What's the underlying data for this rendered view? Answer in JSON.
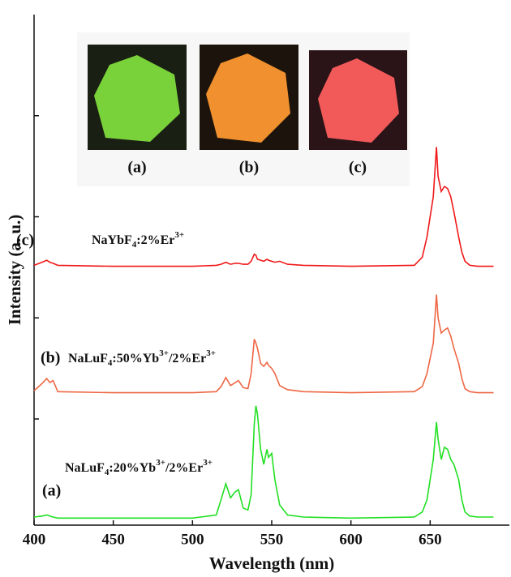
{
  "chart_data": {
    "type": "line",
    "xlabel": "Wavelength (nm)",
    "ylabel": "Intensity (a. u.)",
    "xlim": [
      400,
      700
    ],
    "xticks": [
      400,
      450,
      500,
      550,
      600,
      650
    ],
    "ylim": [
      -0.05,
      5
    ],
    "yticks": [
      1,
      2,
      3,
      4
    ],
    "x": [
      400,
      405,
      408,
      410,
      412,
      415,
      450,
      500,
      515,
      518,
      521,
      524,
      527,
      529,
      532,
      535,
      537,
      539,
      540,
      541,
      543,
      545,
      547,
      548,
      550,
      552,
      555,
      560,
      570,
      600,
      640,
      645,
      648,
      650,
      652,
      654,
      655,
      657,
      659,
      661,
      663,
      665,
      668,
      670,
      672,
      675,
      680,
      690
    ],
    "series": [
      {
        "name": "NaLuF4:20%Yb3+/2%Er3+",
        "color": "#22e022",
        "values": [
          0.03,
          0.04,
          0.05,
          0.04,
          0.03,
          0.02,
          0.02,
          0.02,
          0.05,
          0.2,
          0.36,
          0.22,
          0.28,
          0.3,
          0.12,
          0.1,
          0.25,
          0.95,
          1.13,
          1.05,
          0.7,
          0.55,
          0.7,
          0.62,
          0.66,
          0.4,
          0.15,
          0.05,
          0.03,
          0.02,
          0.03,
          0.08,
          0.2,
          0.4,
          0.6,
          0.97,
          0.8,
          0.6,
          0.72,
          0.7,
          0.6,
          0.55,
          0.4,
          0.2,
          0.08,
          0.04,
          0.03,
          0.03
        ]
      },
      {
        "name": "NaLuF4:50%Yb3+/2%Er3+",
        "color": "#ee6644",
        "values": [
          1.28,
          1.35,
          1.4,
          1.36,
          1.38,
          1.27,
          1.26,
          1.26,
          1.27,
          1.32,
          1.41,
          1.33,
          1.36,
          1.38,
          1.31,
          1.3,
          1.45,
          1.79,
          1.75,
          1.7,
          1.55,
          1.52,
          1.56,
          1.53,
          1.5,
          1.45,
          1.33,
          1.29,
          1.27,
          1.26,
          1.27,
          1.32,
          1.45,
          1.6,
          1.75,
          2.23,
          2.0,
          1.85,
          1.88,
          1.9,
          1.82,
          1.7,
          1.55,
          1.4,
          1.3,
          1.27,
          1.26,
          1.26
        ]
      },
      {
        "name": "NaYbF4:2%Er3+",
        "color": "#f01818",
        "values": [
          2.52,
          2.55,
          2.57,
          2.55,
          2.54,
          2.52,
          2.51,
          2.51,
          2.52,
          2.53,
          2.55,
          2.53,
          2.54,
          2.54,
          2.53,
          2.53,
          2.56,
          2.63,
          2.62,
          2.58,
          2.57,
          2.56,
          2.58,
          2.57,
          2.56,
          2.55,
          2.56,
          2.53,
          2.52,
          2.51,
          2.52,
          2.6,
          2.8,
          3.0,
          3.2,
          3.69,
          3.4,
          3.25,
          3.3,
          3.28,
          3.2,
          3.05,
          2.8,
          2.65,
          2.56,
          2.52,
          2.51,
          2.51
        ]
      }
    ],
    "annotations": [
      "(a)",
      "(b)",
      "(c)"
    ],
    "inset_labels": [
      "(a)",
      "(b)",
      "(c)"
    ]
  }
}
